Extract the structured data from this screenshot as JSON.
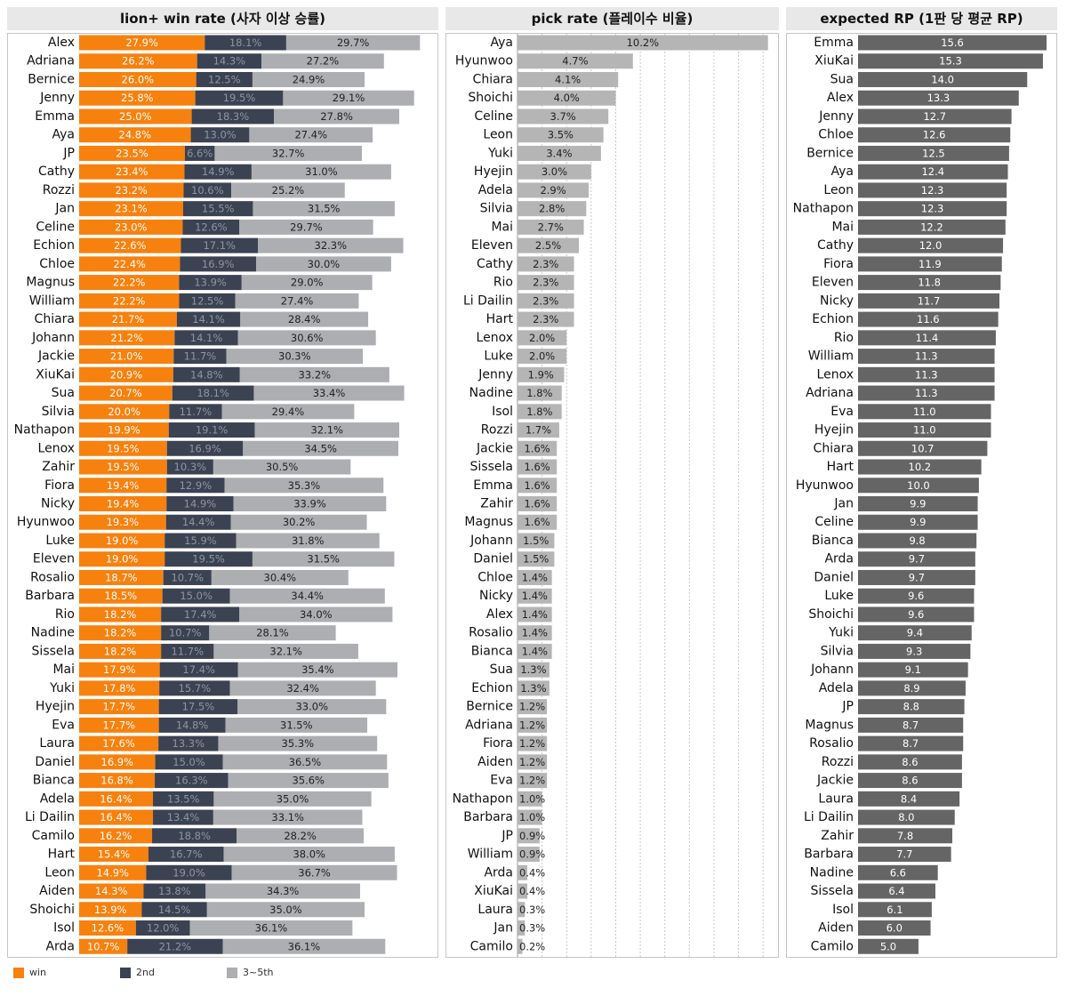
{
  "chart_data": [
    {
      "type": "bar",
      "stacked": true,
      "orientation": "horizontal",
      "title": "lion+ win rate (사자 이상 승률)",
      "categories": [
        "Alex",
        "Adriana",
        "Bernice",
        "Jenny",
        "Emma",
        "Aya",
        "JP",
        "Cathy",
        "Rozzi",
        "Jan",
        "Celine",
        "Echion",
        "Chloe",
        "Magnus",
        "William",
        "Chiara",
        "Johann",
        "Jackie",
        "XiuKai",
        "Sua",
        "Silvia",
        "Nathapon",
        "Lenox",
        "Zahir",
        "Fiora",
        "Nicky",
        "Hyunwoo",
        "Luke",
        "Eleven",
        "Rosalio",
        "Barbara",
        "Rio",
        "Nadine",
        "Sissela",
        "Mai",
        "Yuki",
        "Hyejin",
        "Eva",
        "Laura",
        "Daniel",
        "Bianca",
        "Adela",
        "Li Dailin",
        "Camilo",
        "Hart",
        "Leon",
        "Aiden",
        "Shoichi",
        "Isol",
        "Arda"
      ],
      "series": [
        {
          "name": "win",
          "color": "#f7810e",
          "values": [
            27.9,
            26.2,
            26.0,
            25.8,
            25.0,
            24.8,
            23.5,
            23.4,
            23.2,
            23.1,
            23.0,
            22.6,
            22.4,
            22.2,
            22.2,
            21.7,
            21.2,
            21.0,
            20.9,
            20.7,
            20.0,
            19.9,
            19.5,
            19.5,
            19.4,
            19.4,
            19.3,
            19.0,
            19.0,
            18.7,
            18.5,
            18.2,
            18.2,
            18.2,
            17.9,
            17.8,
            17.7,
            17.7,
            17.6,
            16.9,
            16.8,
            16.4,
            16.4,
            16.2,
            15.4,
            14.9,
            14.3,
            13.9,
            12.6,
            10.7
          ]
        },
        {
          "name": "2nd",
          "color": "#3b4252",
          "values": [
            18.1,
            14.3,
            12.5,
            19.5,
            18.3,
            13.0,
            6.6,
            14.9,
            10.6,
            15.5,
            12.6,
            17.1,
            16.9,
            13.9,
            12.5,
            14.1,
            14.1,
            11.7,
            14.8,
            18.1,
            11.7,
            19.1,
            16.9,
            10.3,
            12.9,
            14.9,
            14.4,
            15.9,
            19.5,
            10.7,
            15.0,
            17.4,
            10.7,
            11.7,
            17.4,
            15.7,
            17.5,
            14.8,
            13.3,
            15.0,
            16.3,
            13.5,
            13.4,
            18.8,
            16.7,
            19.0,
            13.8,
            14.5,
            12.0,
            21.2
          ]
        },
        {
          "name": "3~5th",
          "color": "#acaeb1",
          "values": [
            29.7,
            27.2,
            24.9,
            29.1,
            27.8,
            27.4,
            32.7,
            31.0,
            25.2,
            31.5,
            29.7,
            32.3,
            30.0,
            29.0,
            27.4,
            28.4,
            30.6,
            30.3,
            33.2,
            33.4,
            29.4,
            32.1,
            34.5,
            30.5,
            35.3,
            33.9,
            30.2,
            31.8,
            31.5,
            30.4,
            34.4,
            34.0,
            28.1,
            32.1,
            35.4,
            32.4,
            33.0,
            31.5,
            35.3,
            36.5,
            35.6,
            35.0,
            33.1,
            28.2,
            38.0,
            36.7,
            34.3,
            35.0,
            36.1,
            36.1
          ]
        }
      ],
      "xlim": [
        0,
        79
      ]
    },
    {
      "type": "bar",
      "orientation": "horizontal",
      "title": "pick rate (플레이수 비율)",
      "color": "#b5b5b5",
      "categories": [
        "Aya",
        "Hyunwoo",
        "Chiara",
        "Shoichi",
        "Celine",
        "Leon",
        "Yuki",
        "Hyejin",
        "Adela",
        "Silvia",
        "Mai",
        "Eleven",
        "Cathy",
        "Rio",
        "Li Dailin",
        "Hart",
        "Lenox",
        "Luke",
        "Jenny",
        "Nadine",
        "Isol",
        "Rozzi",
        "Jackie",
        "Sissela",
        "Emma",
        "Zahir",
        "Magnus",
        "Johann",
        "Daniel",
        "Chloe",
        "Nicky",
        "Alex",
        "Rosalio",
        "Bianca",
        "Sua",
        "Echion",
        "Bernice",
        "Adriana",
        "Fiora",
        "Aiden",
        "Eva",
        "Nathapon",
        "Barbara",
        "JP",
        "William",
        "Arda",
        "XiuKai",
        "Laura",
        "Jan",
        "Camilo"
      ],
      "values": [
        10.2,
        4.7,
        4.1,
        4.0,
        3.7,
        3.5,
        3.4,
        3.0,
        2.9,
        2.8,
        2.7,
        2.5,
        2.3,
        2.3,
        2.3,
        2.3,
        2.0,
        2.0,
        1.9,
        1.8,
        1.8,
        1.7,
        1.6,
        1.6,
        1.6,
        1.6,
        1.6,
        1.5,
        1.5,
        1.4,
        1.4,
        1.4,
        1.4,
        1.4,
        1.3,
        1.3,
        1.2,
        1.2,
        1.2,
        1.2,
        1.2,
        1.0,
        1.0,
        0.9,
        0.9,
        0.4,
        0.4,
        0.3,
        0.3,
        0.2
      ],
      "value_suffix": "%",
      "xlim": [
        0,
        10.5
      ],
      "grid": "vertical dotted"
    },
    {
      "type": "bar",
      "orientation": "horizontal",
      "title": "expected RP (1판 당 평균 RP)",
      "color": "#656565",
      "categories": [
        "Emma",
        "XiuKai",
        "Sua",
        "Alex",
        "Jenny",
        "Chloe",
        "Bernice",
        "Aya",
        "Leon",
        "Nathapon",
        "Mai",
        "Cathy",
        "Fiora",
        "Eleven",
        "Nicky",
        "Echion",
        "Rio",
        "William",
        "Lenox",
        "Adriana",
        "Eva",
        "Hyejin",
        "Chiara",
        "Hart",
        "Hyunwoo",
        "Jan",
        "Celine",
        "Bianca",
        "Arda",
        "Daniel",
        "Luke",
        "Shoichi",
        "Yuki",
        "Silvia",
        "Johann",
        "Adela",
        "JP",
        "Magnus",
        "Rosalio",
        "Rozzi",
        "Jackie",
        "Laura",
        "Li Dailin",
        "Zahir",
        "Barbara",
        "Nadine",
        "Sissela",
        "Isol",
        "Aiden",
        "Camilo"
      ],
      "values": [
        15.6,
        15.3,
        14.0,
        13.3,
        12.7,
        12.6,
        12.5,
        12.4,
        12.3,
        12.3,
        12.2,
        12.0,
        11.9,
        11.8,
        11.7,
        11.6,
        11.4,
        11.3,
        11.3,
        11.3,
        11.0,
        11.0,
        10.7,
        10.2,
        10.0,
        9.9,
        9.9,
        9.8,
        9.7,
        9.7,
        9.6,
        9.6,
        9.4,
        9.3,
        9.1,
        8.9,
        8.8,
        8.7,
        8.7,
        8.6,
        8.6,
        8.4,
        8.0,
        7.8,
        7.7,
        6.6,
        6.4,
        6.1,
        6.0,
        5.0
      ],
      "xlim": [
        0,
        16
      ]
    }
  ],
  "legend": [
    {
      "label": "win",
      "color": "#f7810e"
    },
    {
      "label": "2nd",
      "color": "#3b4252"
    },
    {
      "label": "3~5th",
      "color": "#acaeb1"
    }
  ]
}
